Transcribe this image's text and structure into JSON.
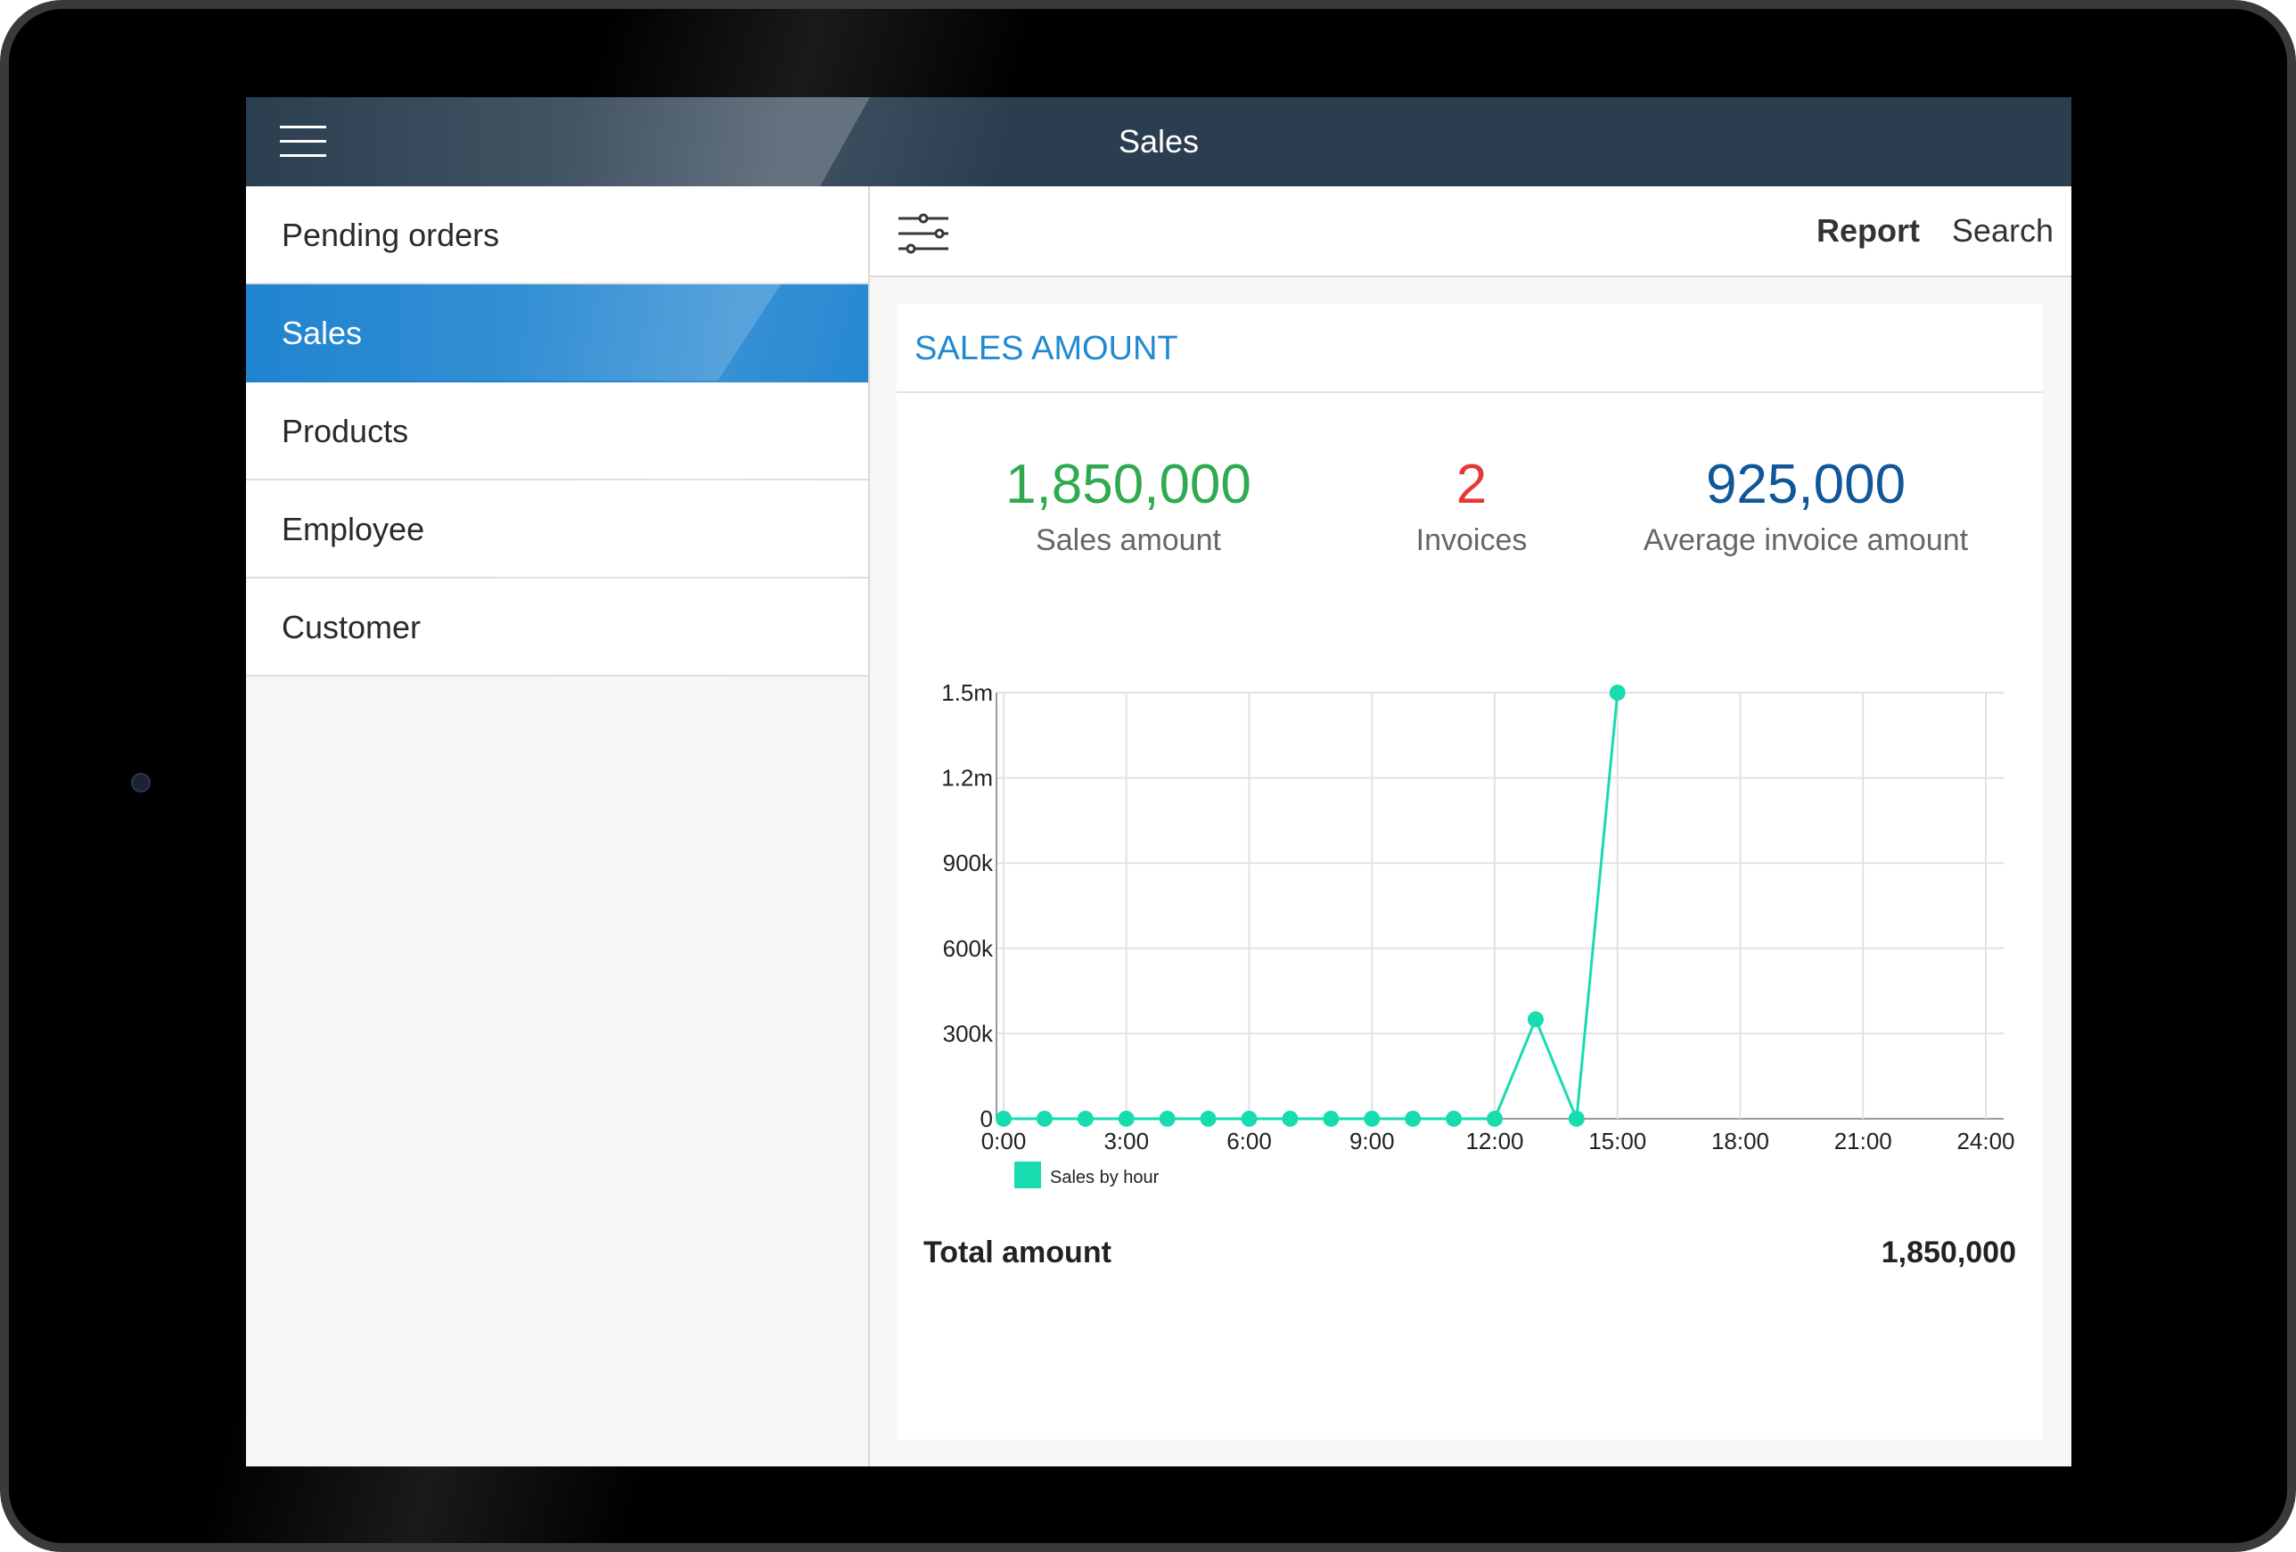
{
  "appbar": {
    "title": "Sales"
  },
  "sidebar": {
    "items": [
      {
        "label": "Pending orders",
        "active": false
      },
      {
        "label": "Sales",
        "active": true
      },
      {
        "label": "Products",
        "active": false
      },
      {
        "label": "Employee",
        "active": false
      },
      {
        "label": "Customer",
        "active": false
      }
    ]
  },
  "toolbar": {
    "report_label": "Report",
    "search_label": "Search"
  },
  "card": {
    "title": "SALES AMOUNT",
    "stats": [
      {
        "value": "1,850,000",
        "caption": "Sales amount",
        "color": "#2eaa4f"
      },
      {
        "value": "2",
        "caption": "Invoices",
        "color": "#e53935"
      },
      {
        "value": "925,000",
        "caption": "Average invoice amount",
        "color": "#10579a"
      }
    ],
    "total_label": "Total amount",
    "total_value": "1,850,000"
  },
  "colors": {
    "accent": "#1f84cf",
    "appbar": "#2b3e50",
    "series": "#17dcb0"
  },
  "chart_data": {
    "type": "line",
    "title": "",
    "xlabel": "",
    "ylabel": "",
    "x": [
      0,
      1,
      2,
      3,
      4,
      5,
      6,
      7,
      8,
      9,
      10,
      11,
      12,
      13,
      14,
      15
    ],
    "series": [
      {
        "name": "Sales by hour",
        "values": [
          0,
          0,
          0,
          0,
          0,
          0,
          0,
          0,
          0,
          0,
          0,
          0,
          0,
          350000,
          0,
          1500000
        ]
      }
    ],
    "xlim": [
      0,
      24
    ],
    "ylim": [
      0,
      1500000
    ],
    "x_ticks": [
      "0:00",
      "3:00",
      "6:00",
      "9:00",
      "12:00",
      "15:00",
      "18:00",
      "21:00",
      "24:00"
    ],
    "y_ticks": [
      "0",
      "300k",
      "600k",
      "900k",
      "1.2m",
      "1.5m"
    ],
    "grid": true,
    "legend_position": "bottom-left"
  }
}
